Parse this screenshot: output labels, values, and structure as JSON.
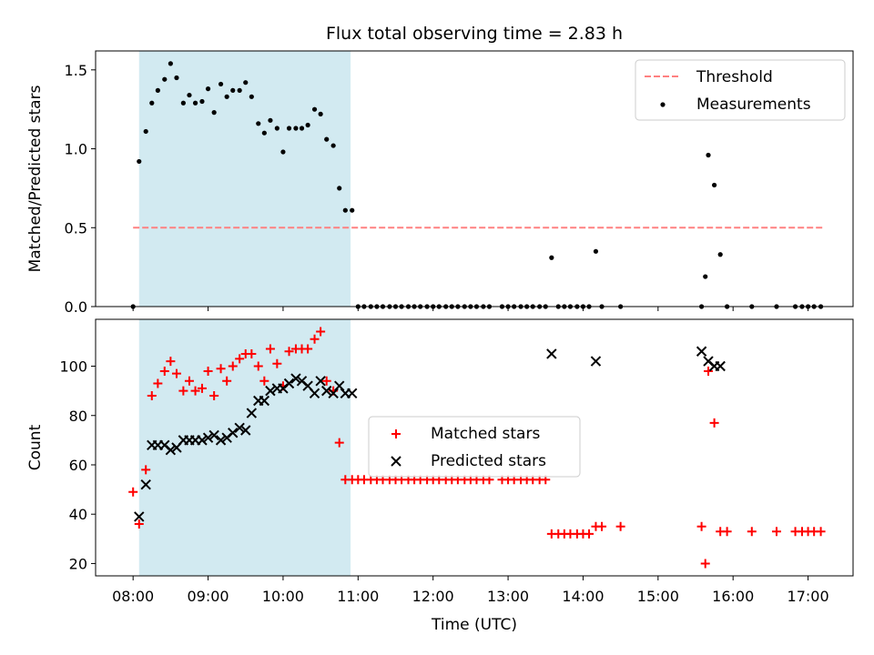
{
  "figure": {
    "title": "Flux total observing time = 2.83 h",
    "xlabel": "Time (UTC)",
    "x_ticks": [
      "08:00",
      "09:00",
      "10:00",
      "11:00",
      "12:00",
      "13:00",
      "14:00",
      "15:00",
      "16:00",
      "17:00"
    ],
    "x_tick_hours": [
      8,
      9,
      10,
      11,
      12,
      13,
      14,
      15,
      16,
      17
    ],
    "xlim_hours": [
      7.5,
      17.6
    ],
    "shaded_interval_hours": [
      8.08,
      10.9
    ],
    "shade_color": "#add8e6"
  },
  "chart_data": [
    {
      "type": "scatter",
      "ylabel": "Matched/Predicted stars",
      "ylim": [
        0,
        1.62
      ],
      "y_ticks": [
        0.0,
        0.5,
        1.0,
        1.5
      ],
      "y_tick_labels": [
        "0.0",
        "0.5",
        "1.0",
        "1.5"
      ],
      "legend_position": "top-right",
      "threshold": {
        "name": "Threshold",
        "value": 0.5,
        "x_range": [
          8.0,
          17.2
        ],
        "color": "#ff8080",
        "style": "dashed"
      },
      "series": [
        {
          "name": "Measurements",
          "color": "#000000",
          "x": [
            8.0,
            8.08,
            8.17,
            8.25,
            8.33,
            8.42,
            8.5,
            8.58,
            8.67,
            8.75,
            8.83,
            8.92,
            9.0,
            9.08,
            9.17,
            9.25,
            9.33,
            9.42,
            9.5,
            9.58,
            9.67,
            9.75,
            9.83,
            9.92,
            10.0,
            10.08,
            10.17,
            10.25,
            10.33,
            10.42,
            10.5,
            10.58,
            10.67,
            10.75,
            10.83,
            10.92,
            11.0,
            11.08,
            11.17,
            11.25,
            11.33,
            11.42,
            11.5,
            11.58,
            11.67,
            11.75,
            11.83,
            11.92,
            12.0,
            12.08,
            12.17,
            12.25,
            12.33,
            12.42,
            12.5,
            12.58,
            12.67,
            12.75,
            12.92,
            13.0,
            13.08,
            13.17,
            13.25,
            13.33,
            13.42,
            13.5,
            13.58,
            13.67,
            13.75,
            13.83,
            13.92,
            14.0,
            14.08,
            14.17,
            14.25,
            14.5,
            15.58,
            15.63,
            15.67,
            15.75,
            15.83,
            15.92,
            16.25,
            16.58,
            16.83,
            16.92,
            17.0,
            17.08,
            17.17
          ],
          "y": [
            0.0,
            0.92,
            1.11,
            1.29,
            1.37,
            1.44,
            1.54,
            1.45,
            1.29,
            1.34,
            1.29,
            1.3,
            1.38,
            1.23,
            1.41,
            1.33,
            1.37,
            1.37,
            1.42,
            1.33,
            1.16,
            1.1,
            1.18,
            1.13,
            0.98,
            1.13,
            1.13,
            1.13,
            1.15,
            1.25,
            1.22,
            1.06,
            1.02,
            0.75,
            0.61,
            0.61,
            0.0,
            0.0,
            0.0,
            0.0,
            0.0,
            0.0,
            0.0,
            0.0,
            0.0,
            0.0,
            0.0,
            0.0,
            0.0,
            0.0,
            0.0,
            0.0,
            0.0,
            0.0,
            0.0,
            0.0,
            0.0,
            0.0,
            0.0,
            0.0,
            0.0,
            0.0,
            0.0,
            0.0,
            0.0,
            0.0,
            0.31,
            0.0,
            0.0,
            0.0,
            0.0,
            0.0,
            0.0,
            0.35,
            0.0,
            0.0,
            0.0,
            0.19,
            0.96,
            0.77,
            0.33,
            0.0,
            0.0,
            0.0,
            0.0,
            0.0,
            0.0,
            0.0,
            0.0
          ]
        }
      ]
    },
    {
      "type": "scatter",
      "ylabel": "Count",
      "ylim": [
        15,
        119
      ],
      "y_ticks": [
        20,
        40,
        60,
        80,
        100
      ],
      "y_tick_labels": [
        "20",
        "40",
        "60",
        "80",
        "100"
      ],
      "legend_position": "center",
      "series": [
        {
          "name": "Matched stars",
          "marker": "plus",
          "color": "#ff0000",
          "x": [
            8.0,
            8.08,
            8.17,
            8.25,
            8.33,
            8.42,
            8.5,
            8.58,
            8.67,
            8.75,
            8.83,
            8.92,
            9.0,
            9.08,
            9.17,
            9.25,
            9.33,
            9.42,
            9.5,
            9.58,
            9.67,
            9.75,
            9.83,
            9.92,
            10.0,
            10.08,
            10.17,
            10.25,
            10.33,
            10.42,
            10.5,
            10.58,
            10.67,
            10.75,
            10.83,
            10.92,
            11.0,
            11.08,
            11.17,
            11.25,
            11.33,
            11.42,
            11.5,
            11.58,
            11.67,
            11.75,
            11.83,
            11.92,
            12.0,
            12.08,
            12.17,
            12.25,
            12.33,
            12.42,
            12.5,
            12.58,
            12.67,
            12.75,
            12.92,
            13.0,
            13.08,
            13.17,
            13.25,
            13.33,
            13.42,
            13.5,
            13.58,
            13.67,
            13.75,
            13.83,
            13.92,
            14.0,
            14.08,
            14.17,
            14.25,
            14.5,
            15.58,
            15.63,
            15.67,
            15.75,
            15.83,
            15.92,
            16.25,
            16.58,
            16.83,
            16.92,
            17.0,
            17.08,
            17.17
          ],
          "y": [
            49,
            36,
            58,
            88,
            93,
            98,
            102,
            97,
            90,
            94,
            90,
            91,
            98,
            88,
            99,
            94,
            100,
            103,
            105,
            105,
            100,
            94,
            107,
            101,
            92,
            106,
            107,
            107,
            107,
            111,
            114,
            94,
            90,
            69,
            54,
            54,
            54,
            54,
            54,
            54,
            54,
            54,
            54,
            54,
            54,
            54,
            54,
            54,
            54,
            54,
            54,
            54,
            54,
            54,
            54,
            54,
            54,
            54,
            54,
            54,
            54,
            54,
            54,
            54,
            54,
            54,
            32,
            32,
            32,
            32,
            32,
            32,
            32,
            35,
            35,
            35,
            35,
            20,
            98,
            77,
            33,
            33,
            33,
            33,
            33,
            33,
            33,
            33,
            33
          ]
        },
        {
          "name": "Predicted stars",
          "marker": "x",
          "color": "#000000",
          "x": [
            8.08,
            8.17,
            8.25,
            8.33,
            8.42,
            8.5,
            8.58,
            8.67,
            8.75,
            8.83,
            8.92,
            9.0,
            9.08,
            9.17,
            9.25,
            9.33,
            9.42,
            9.5,
            9.58,
            9.67,
            9.75,
            9.83,
            9.92,
            10.0,
            10.08,
            10.17,
            10.25,
            10.33,
            10.42,
            10.5,
            10.58,
            10.67,
            10.75,
            10.83,
            10.92,
            13.58,
            14.17,
            15.58,
            15.67,
            15.75,
            15.83
          ],
          "y": [
            39,
            52,
            68,
            68,
            68,
            66,
            67,
            70,
            70,
            70,
            70,
            71,
            72,
            70,
            71,
            73,
            75,
            74,
            81,
            86,
            86,
            90,
            91,
            91,
            93,
            95,
            94,
            92,
            89,
            94,
            90,
            89,
            92,
            89,
            89,
            105,
            102,
            106,
            102,
            100,
            100
          ]
        }
      ]
    }
  ]
}
